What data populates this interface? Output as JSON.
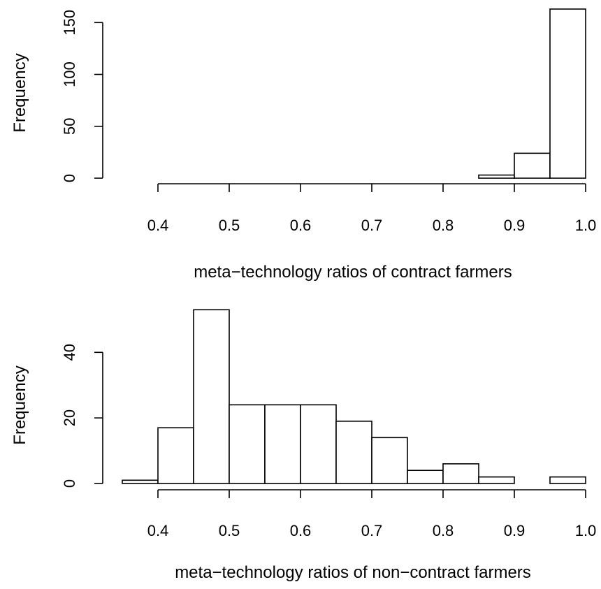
{
  "chart_data": [
    {
      "type": "bar",
      "subtype": "histogram",
      "xlabel": "meta−technology ratios of contract farmers",
      "ylabel": "Frequency",
      "xlim": [
        0.35,
        1.0
      ],
      "ylim": [
        0,
        165
      ],
      "x_ticks": [
        "0.4",
        "0.5",
        "0.6",
        "0.7",
        "0.8",
        "0.9",
        "1.0"
      ],
      "y_ticks": [
        "0",
        "50",
        "100",
        "150"
      ],
      "bins": [
        {
          "from": 0.35,
          "to": 0.4,
          "count": 0
        },
        {
          "from": 0.4,
          "to": 0.45,
          "count": 0
        },
        {
          "from": 0.45,
          "to": 0.5,
          "count": 0
        },
        {
          "from": 0.5,
          "to": 0.55,
          "count": 0
        },
        {
          "from": 0.55,
          "to": 0.6,
          "count": 0
        },
        {
          "from": 0.6,
          "to": 0.65,
          "count": 0
        },
        {
          "from": 0.65,
          "to": 0.7,
          "count": 0
        },
        {
          "from": 0.7,
          "to": 0.75,
          "count": 0
        },
        {
          "from": 0.75,
          "to": 0.8,
          "count": 0
        },
        {
          "from": 0.8,
          "to": 0.85,
          "count": 0
        },
        {
          "from": 0.85,
          "to": 0.9,
          "count": 3
        },
        {
          "from": 0.9,
          "to": 0.95,
          "count": 24
        },
        {
          "from": 0.95,
          "to": 1.0,
          "count": 163
        }
      ]
    },
    {
      "type": "bar",
      "subtype": "histogram",
      "xlabel": "meta−technology ratios of non−contract farmers",
      "ylabel": "Frequency",
      "xlim": [
        0.35,
        1.0
      ],
      "ylim": [
        0,
        52
      ],
      "x_ticks": [
        "0.4",
        "0.5",
        "0.6",
        "0.7",
        "0.8",
        "0.9",
        "1.0"
      ],
      "y_ticks": [
        "0",
        "20",
        "40"
      ],
      "bins": [
        {
          "from": 0.35,
          "to": 0.4,
          "count": 1
        },
        {
          "from": 0.4,
          "to": 0.45,
          "count": 17
        },
        {
          "from": 0.45,
          "to": 0.5,
          "count": 53
        },
        {
          "from": 0.5,
          "to": 0.55,
          "count": 24
        },
        {
          "from": 0.55,
          "to": 0.6,
          "count": 24
        },
        {
          "from": 0.6,
          "to": 0.65,
          "count": 24
        },
        {
          "from": 0.65,
          "to": 0.7,
          "count": 19
        },
        {
          "from": 0.7,
          "to": 0.75,
          "count": 14
        },
        {
          "from": 0.75,
          "to": 0.8,
          "count": 4
        },
        {
          "from": 0.8,
          "to": 0.85,
          "count": 6
        },
        {
          "from": 0.85,
          "to": 0.9,
          "count": 2
        },
        {
          "from": 0.9,
          "to": 0.95,
          "count": 0
        },
        {
          "from": 0.95,
          "to": 1.0,
          "count": 2
        }
      ]
    }
  ]
}
